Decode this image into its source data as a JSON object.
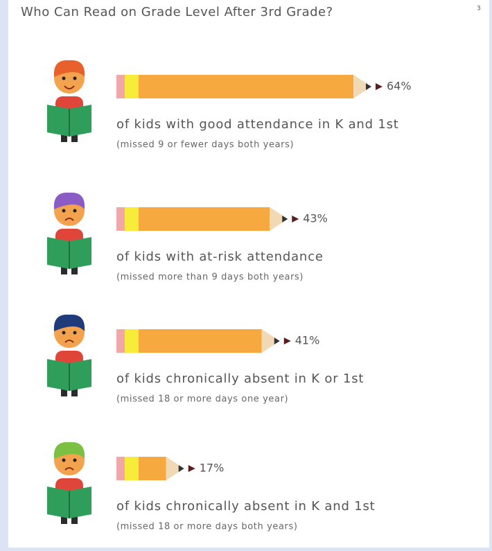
{
  "chart_data": {
    "type": "pencil-bar",
    "title": "Who Can Read on Grade Level After 3rd Grade?",
    "title_note": "3",
    "categories": [
      "of kids with good attendance in K and 1st",
      "of kids with at-risk attendance",
      "of kids chronically absent in K or 1st",
      "of kids chronically absent in K and 1st"
    ],
    "notes": [
      "(missed 9 or fewer days both years)",
      "(missed more than 9 days both years)",
      "(missed 18 or more days one year)",
      "(missed 18 or more days both years)"
    ],
    "values": [
      64,
      43,
      41,
      17
    ],
    "value_labels": [
      "64%",
      "43%",
      "41%",
      "17%"
    ],
    "color": "#f5a93f"
  }
}
